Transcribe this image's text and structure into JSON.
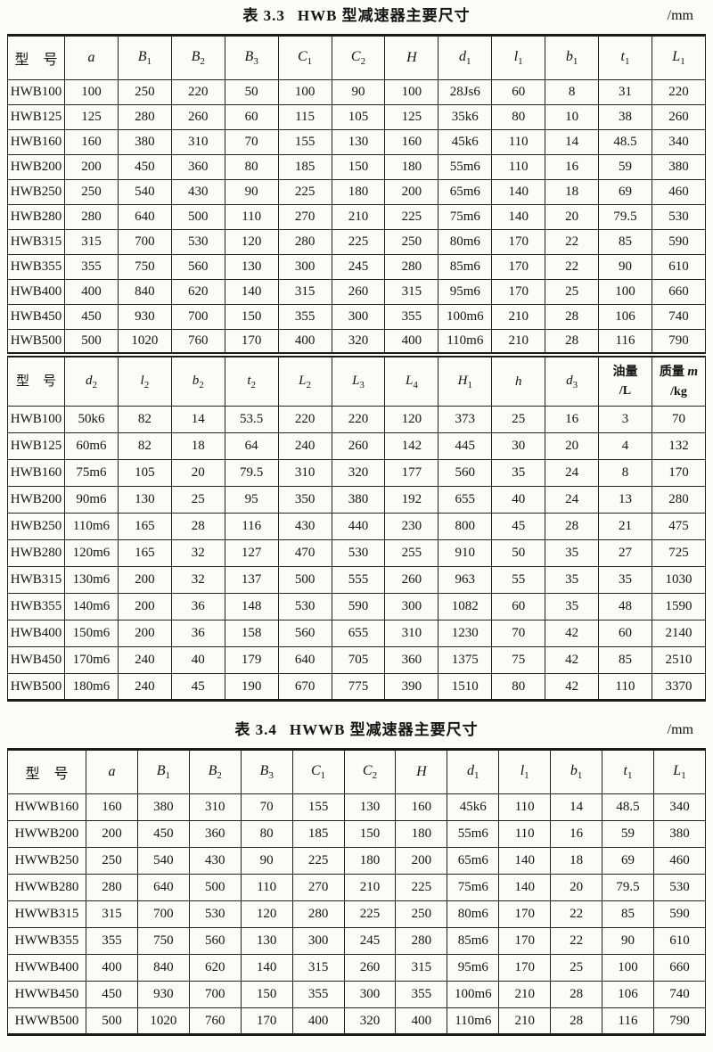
{
  "tables": [
    {
      "id": "table1",
      "caption_label": "表 3.3",
      "caption_title": "HWB 型减速器主要尺寸",
      "unit": "/mm",
      "sections": [
        {
          "headers": [
            [
              {
                "t": "型　号"
              }
            ],
            [
              {
                "t": "a",
                "i": true
              }
            ],
            [
              {
                "t": "B",
                "i": true
              },
              {
                "t": "1",
                "sub": true
              }
            ],
            [
              {
                "t": "B",
                "i": true
              },
              {
                "t": "2",
                "sub": true
              }
            ],
            [
              {
                "t": "B",
                "i": true
              },
              {
                "t": "3",
                "sub": true
              }
            ],
            [
              {
                "t": "C",
                "i": true
              },
              {
                "t": "1",
                "sub": true
              }
            ],
            [
              {
                "t": "C",
                "i": true
              },
              {
                "t": "2",
                "sub": true
              }
            ],
            [
              {
                "t": "H",
                "i": true
              }
            ],
            [
              {
                "t": "d",
                "i": true
              },
              {
                "t": "1",
                "sub": true
              }
            ],
            [
              {
                "t": "l",
                "i": true
              },
              {
                "t": "1",
                "sub": true
              }
            ],
            [
              {
                "t": "b",
                "i": true
              },
              {
                "t": "1",
                "sub": true
              }
            ],
            [
              {
                "t": "t",
                "i": true
              },
              {
                "t": "1",
                "sub": true
              }
            ],
            [
              {
                "t": "L",
                "i": true
              },
              {
                "t": "1",
                "sub": true
              }
            ]
          ],
          "rows": [
            [
              "HWB100",
              "100",
              "250",
              "220",
              "50",
              "100",
              "90",
              "100",
              "28Js6",
              "60",
              "8",
              "31",
              "220"
            ],
            [
              "HWB125",
              "125",
              "280",
              "260",
              "60",
              "115",
              "105",
              "125",
              "35k6",
              "80",
              "10",
              "38",
              "260"
            ],
            [
              "HWB160",
              "160",
              "380",
              "310",
              "70",
              "155",
              "130",
              "160",
              "45k6",
              "110",
              "14",
              "48.5",
              "340"
            ],
            [
              "HWB200",
              "200",
              "450",
              "360",
              "80",
              "185",
              "150",
              "180",
              "55m6",
              "110",
              "16",
              "59",
              "380"
            ],
            [
              "HWB250",
              "250",
              "540",
              "430",
              "90",
              "225",
              "180",
              "200",
              "65m6",
              "140",
              "18",
              "69",
              "460"
            ],
            [
              "HWB280",
              "280",
              "640",
              "500",
              "110",
              "270",
              "210",
              "225",
              "75m6",
              "140",
              "20",
              "79.5",
              "530"
            ],
            [
              "HWB315",
              "315",
              "700",
              "530",
              "120",
              "280",
              "225",
              "250",
              "80m6",
              "170",
              "22",
              "85",
              "590"
            ],
            [
              "HWB355",
              "355",
              "750",
              "560",
              "130",
              "300",
              "245",
              "280",
              "85m6",
              "170",
              "22",
              "90",
              "610"
            ],
            [
              "HWB400",
              "400",
              "840",
              "620",
              "140",
              "315",
              "260",
              "315",
              "95m6",
              "170",
              "25",
              "100",
              "660"
            ],
            [
              "HWB450",
              "450",
              "930",
              "700",
              "150",
              "355",
              "300",
              "355",
              "100m6",
              "210",
              "28",
              "106",
              "740"
            ],
            [
              "HWB500",
              "500",
              "1020",
              "760",
              "170",
              "400",
              "320",
              "400",
              "110m6",
              "210",
              "28",
              "116",
              "790"
            ]
          ]
        },
        {
          "headers": [
            [
              {
                "t": "型　号"
              }
            ],
            [
              {
                "t": "d",
                "i": true
              },
              {
                "t": "2",
                "sub": true
              }
            ],
            [
              {
                "t": "l",
                "i": true
              },
              {
                "t": "2",
                "sub": true
              }
            ],
            [
              {
                "t": "b",
                "i": true
              },
              {
                "t": "2",
                "sub": true
              }
            ],
            [
              {
                "t": "t",
                "i": true
              },
              {
                "t": "2",
                "sub": true
              }
            ],
            [
              {
                "t": "L",
                "i": true
              },
              {
                "t": "2",
                "sub": true
              }
            ],
            [
              {
                "t": "L",
                "i": true
              },
              {
                "t": "3",
                "sub": true
              }
            ],
            [
              {
                "t": "L",
                "i": true
              },
              {
                "t": "4",
                "sub": true
              }
            ],
            [
              {
                "t": "H",
                "i": true
              },
              {
                "t": "1",
                "sub": true
              }
            ],
            [
              {
                "t": "h",
                "i": true
              }
            ],
            [
              {
                "t": "d",
                "i": true
              },
              {
                "t": "3",
                "sub": true
              }
            ],
            [
              {
                "t": "油量"
              },
              {
                "nl": true
              },
              {
                "t": "/L"
              }
            ],
            [
              {
                "t": "质量 "
              },
              {
                "t": "m",
                "i": true
              },
              {
                "nl": true
              },
              {
                "t": "/kg"
              }
            ]
          ],
          "rows": [
            [
              "HWB100",
              "50k6",
              "82",
              "14",
              "53.5",
              "220",
              "220",
              "120",
              "373",
              "25",
              "16",
              "3",
              "70"
            ],
            [
              "HWB125",
              "60m6",
              "82",
              "18",
              "64",
              "240",
              "260",
              "142",
              "445",
              "30",
              "20",
              "4",
              "132"
            ],
            [
              "HWB160",
              "75m6",
              "105",
              "20",
              "79.5",
              "310",
              "320",
              "177",
              "560",
              "35",
              "24",
              "8",
              "170"
            ],
            [
              "HWB200",
              "90m6",
              "130",
              "25",
              "95",
              "350",
              "380",
              "192",
              "655",
              "40",
              "24",
              "13",
              "280"
            ],
            [
              "HWB250",
              "110m6",
              "165",
              "28",
              "116",
              "430",
              "440",
              "230",
              "800",
              "45",
              "28",
              "21",
              "475"
            ],
            [
              "HWB280",
              "120m6",
              "165",
              "32",
              "127",
              "470",
              "530",
              "255",
              "910",
              "50",
              "35",
              "27",
              "725"
            ],
            [
              "HWB315",
              "130m6",
              "200",
              "32",
              "137",
              "500",
              "555",
              "260",
              "963",
              "55",
              "35",
              "35",
              "1030"
            ],
            [
              "HWB355",
              "140m6",
              "200",
              "36",
              "148",
              "530",
              "590",
              "300",
              "1082",
              "60",
              "35",
              "48",
              "1590"
            ],
            [
              "HWB400",
              "150m6",
              "200",
              "36",
              "158",
              "560",
              "655",
              "310",
              "1230",
              "70",
              "42",
              "60",
              "2140"
            ],
            [
              "HWB450",
              "170m6",
              "240",
              "40",
              "179",
              "640",
              "705",
              "360",
              "1375",
              "75",
              "42",
              "85",
              "2510"
            ],
            [
              "HWB500",
              "180m6",
              "240",
              "45",
              "190",
              "670",
              "775",
              "390",
              "1510",
              "80",
              "42",
              "110",
              "3370"
            ]
          ]
        }
      ]
    },
    {
      "id": "table2",
      "caption_label": "表 3.4",
      "caption_title": "HWWB 型减速器主要尺寸",
      "unit": "/mm",
      "sections": [
        {
          "headers": [
            [
              {
                "t": "型　号"
              }
            ],
            [
              {
                "t": "a",
                "i": true
              }
            ],
            [
              {
                "t": "B",
                "i": true
              },
              {
                "t": "1",
                "sub": true
              }
            ],
            [
              {
                "t": "B",
                "i": true
              },
              {
                "t": "2",
                "sub": true
              }
            ],
            [
              {
                "t": "B",
                "i": true
              },
              {
                "t": "3",
                "sub": true
              }
            ],
            [
              {
                "t": "C",
                "i": true
              },
              {
                "t": "1",
                "sub": true
              }
            ],
            [
              {
                "t": "C",
                "i": true
              },
              {
                "t": "2",
                "sub": true
              }
            ],
            [
              {
                "t": "H",
                "i": true
              }
            ],
            [
              {
                "t": "d",
                "i": true
              },
              {
                "t": "1",
                "sub": true
              }
            ],
            [
              {
                "t": "l",
                "i": true
              },
              {
                "t": "1",
                "sub": true
              }
            ],
            [
              {
                "t": "b",
                "i": true
              },
              {
                "t": "1",
                "sub": true
              }
            ],
            [
              {
                "t": "t",
                "i": true
              },
              {
                "t": "1",
                "sub": true
              }
            ],
            [
              {
                "t": "L",
                "i": true
              },
              {
                "t": "1",
                "sub": true
              }
            ]
          ],
          "rows": [
            [
              "HWWB160",
              "160",
              "380",
              "310",
              "70",
              "155",
              "130",
              "160",
              "45k6",
              "110",
              "14",
              "48.5",
              "340"
            ],
            [
              "HWWB200",
              "200",
              "450",
              "360",
              "80",
              "185",
              "150",
              "180",
              "55m6",
              "110",
              "16",
              "59",
              "380"
            ],
            [
              "HWWB250",
              "250",
              "540",
              "430",
              "90",
              "225",
              "180",
              "200",
              "65m6",
              "140",
              "18",
              "69",
              "460"
            ],
            [
              "HWWB280",
              "280",
              "640",
              "500",
              "110",
              "270",
              "210",
              "225",
              "75m6",
              "140",
              "20",
              "79.5",
              "530"
            ],
            [
              "HWWB315",
              "315",
              "700",
              "530",
              "120",
              "280",
              "225",
              "250",
              "80m6",
              "170",
              "22",
              "85",
              "590"
            ],
            [
              "HWWB355",
              "355",
              "750",
              "560",
              "130",
              "300",
              "245",
              "280",
              "85m6",
              "170",
              "22",
              "90",
              "610"
            ],
            [
              "HWWB400",
              "400",
              "840",
              "620",
              "140",
              "315",
              "260",
              "315",
              "95m6",
              "170",
              "25",
              "100",
              "660"
            ],
            [
              "HWWB450",
              "450",
              "930",
              "700",
              "150",
              "355",
              "300",
              "355",
              "100m6",
              "210",
              "28",
              "106",
              "740"
            ],
            [
              "HWWB500",
              "500",
              "1020",
              "760",
              "170",
              "400",
              "320",
              "400",
              "110m6",
              "210",
              "28",
              "116",
              "790"
            ]
          ]
        }
      ]
    }
  ]
}
